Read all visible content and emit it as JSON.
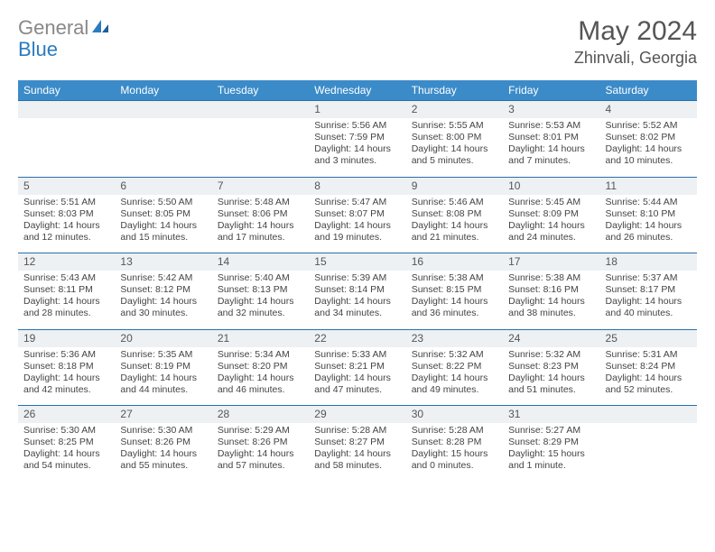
{
  "brand": {
    "part1": "General",
    "part2": "Blue"
  },
  "title": "May 2024",
  "location": "Zhinvali, Georgia",
  "colors": {
    "header_bg": "#3b8bc9",
    "daynum_bg": "#edf1f4",
    "daynum_border": "#2b6fa8",
    "text": "#444",
    "title": "#555"
  },
  "weekdays": [
    "Sunday",
    "Monday",
    "Tuesday",
    "Wednesday",
    "Thursday",
    "Friday",
    "Saturday"
  ],
  "weeks": [
    [
      {
        "n": "",
        "sr": "",
        "ss": "",
        "dl": ""
      },
      {
        "n": "",
        "sr": "",
        "ss": "",
        "dl": ""
      },
      {
        "n": "",
        "sr": "",
        "ss": "",
        "dl": ""
      },
      {
        "n": "1",
        "sr": "Sunrise: 5:56 AM",
        "ss": "Sunset: 7:59 PM",
        "dl": "Daylight: 14 hours and 3 minutes."
      },
      {
        "n": "2",
        "sr": "Sunrise: 5:55 AM",
        "ss": "Sunset: 8:00 PM",
        "dl": "Daylight: 14 hours and 5 minutes."
      },
      {
        "n": "3",
        "sr": "Sunrise: 5:53 AM",
        "ss": "Sunset: 8:01 PM",
        "dl": "Daylight: 14 hours and 7 minutes."
      },
      {
        "n": "4",
        "sr": "Sunrise: 5:52 AM",
        "ss": "Sunset: 8:02 PM",
        "dl": "Daylight: 14 hours and 10 minutes."
      }
    ],
    [
      {
        "n": "5",
        "sr": "Sunrise: 5:51 AM",
        "ss": "Sunset: 8:03 PM",
        "dl": "Daylight: 14 hours and 12 minutes."
      },
      {
        "n": "6",
        "sr": "Sunrise: 5:50 AM",
        "ss": "Sunset: 8:05 PM",
        "dl": "Daylight: 14 hours and 15 minutes."
      },
      {
        "n": "7",
        "sr": "Sunrise: 5:48 AM",
        "ss": "Sunset: 8:06 PM",
        "dl": "Daylight: 14 hours and 17 minutes."
      },
      {
        "n": "8",
        "sr": "Sunrise: 5:47 AM",
        "ss": "Sunset: 8:07 PM",
        "dl": "Daylight: 14 hours and 19 minutes."
      },
      {
        "n": "9",
        "sr": "Sunrise: 5:46 AM",
        "ss": "Sunset: 8:08 PM",
        "dl": "Daylight: 14 hours and 21 minutes."
      },
      {
        "n": "10",
        "sr": "Sunrise: 5:45 AM",
        "ss": "Sunset: 8:09 PM",
        "dl": "Daylight: 14 hours and 24 minutes."
      },
      {
        "n": "11",
        "sr": "Sunrise: 5:44 AM",
        "ss": "Sunset: 8:10 PM",
        "dl": "Daylight: 14 hours and 26 minutes."
      }
    ],
    [
      {
        "n": "12",
        "sr": "Sunrise: 5:43 AM",
        "ss": "Sunset: 8:11 PM",
        "dl": "Daylight: 14 hours and 28 minutes."
      },
      {
        "n": "13",
        "sr": "Sunrise: 5:42 AM",
        "ss": "Sunset: 8:12 PM",
        "dl": "Daylight: 14 hours and 30 minutes."
      },
      {
        "n": "14",
        "sr": "Sunrise: 5:40 AM",
        "ss": "Sunset: 8:13 PM",
        "dl": "Daylight: 14 hours and 32 minutes."
      },
      {
        "n": "15",
        "sr": "Sunrise: 5:39 AM",
        "ss": "Sunset: 8:14 PM",
        "dl": "Daylight: 14 hours and 34 minutes."
      },
      {
        "n": "16",
        "sr": "Sunrise: 5:38 AM",
        "ss": "Sunset: 8:15 PM",
        "dl": "Daylight: 14 hours and 36 minutes."
      },
      {
        "n": "17",
        "sr": "Sunrise: 5:38 AM",
        "ss": "Sunset: 8:16 PM",
        "dl": "Daylight: 14 hours and 38 minutes."
      },
      {
        "n": "18",
        "sr": "Sunrise: 5:37 AM",
        "ss": "Sunset: 8:17 PM",
        "dl": "Daylight: 14 hours and 40 minutes."
      }
    ],
    [
      {
        "n": "19",
        "sr": "Sunrise: 5:36 AM",
        "ss": "Sunset: 8:18 PM",
        "dl": "Daylight: 14 hours and 42 minutes."
      },
      {
        "n": "20",
        "sr": "Sunrise: 5:35 AM",
        "ss": "Sunset: 8:19 PM",
        "dl": "Daylight: 14 hours and 44 minutes."
      },
      {
        "n": "21",
        "sr": "Sunrise: 5:34 AM",
        "ss": "Sunset: 8:20 PM",
        "dl": "Daylight: 14 hours and 46 minutes."
      },
      {
        "n": "22",
        "sr": "Sunrise: 5:33 AM",
        "ss": "Sunset: 8:21 PM",
        "dl": "Daylight: 14 hours and 47 minutes."
      },
      {
        "n": "23",
        "sr": "Sunrise: 5:32 AM",
        "ss": "Sunset: 8:22 PM",
        "dl": "Daylight: 14 hours and 49 minutes."
      },
      {
        "n": "24",
        "sr": "Sunrise: 5:32 AM",
        "ss": "Sunset: 8:23 PM",
        "dl": "Daylight: 14 hours and 51 minutes."
      },
      {
        "n": "25",
        "sr": "Sunrise: 5:31 AM",
        "ss": "Sunset: 8:24 PM",
        "dl": "Daylight: 14 hours and 52 minutes."
      }
    ],
    [
      {
        "n": "26",
        "sr": "Sunrise: 5:30 AM",
        "ss": "Sunset: 8:25 PM",
        "dl": "Daylight: 14 hours and 54 minutes."
      },
      {
        "n": "27",
        "sr": "Sunrise: 5:30 AM",
        "ss": "Sunset: 8:26 PM",
        "dl": "Daylight: 14 hours and 55 minutes."
      },
      {
        "n": "28",
        "sr": "Sunrise: 5:29 AM",
        "ss": "Sunset: 8:26 PM",
        "dl": "Daylight: 14 hours and 57 minutes."
      },
      {
        "n": "29",
        "sr": "Sunrise: 5:28 AM",
        "ss": "Sunset: 8:27 PM",
        "dl": "Daylight: 14 hours and 58 minutes."
      },
      {
        "n": "30",
        "sr": "Sunrise: 5:28 AM",
        "ss": "Sunset: 8:28 PM",
        "dl": "Daylight: 15 hours and 0 minutes."
      },
      {
        "n": "31",
        "sr": "Sunrise: 5:27 AM",
        "ss": "Sunset: 8:29 PM",
        "dl": "Daylight: 15 hours and 1 minute."
      },
      {
        "n": "",
        "sr": "",
        "ss": "",
        "dl": ""
      }
    ]
  ]
}
